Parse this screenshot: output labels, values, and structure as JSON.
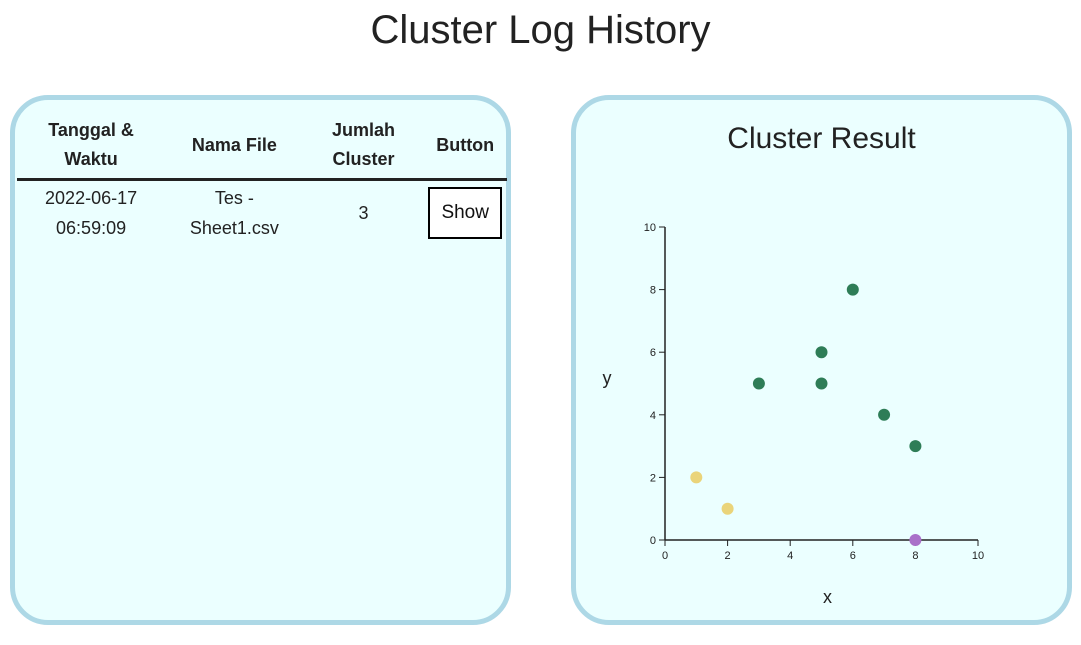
{
  "page": {
    "title": "Cluster Log History"
  },
  "log_table": {
    "headers": [
      {
        "line1": "Tanggal &",
        "line2": "Waktu"
      },
      {
        "line1": "Nama File",
        "line2": ""
      },
      {
        "line1": "Jumlah",
        "line2": "Cluster"
      },
      {
        "line1": "Button",
        "line2": ""
      }
    ],
    "rows": [
      {
        "date": "2022-06-17",
        "time": "06:59:09",
        "file_line1": "Tes -",
        "file_line2": "Sheet1.csv",
        "cluster_count": "3",
        "button_label": "Show"
      }
    ]
  },
  "chart_panel": {
    "title": "Cluster Result"
  },
  "chart_data": {
    "type": "scatter",
    "title": "Cluster Result",
    "xlabel": "x",
    "ylabel": "y",
    "xlim": [
      0,
      10
    ],
    "ylim": [
      0,
      10
    ],
    "xticks": [
      0,
      2,
      4,
      6,
      8,
      10
    ],
    "yticks": [
      0,
      2,
      4,
      6,
      8,
      10
    ],
    "grid": false,
    "series": [
      {
        "color": "#2e7d57",
        "points": [
          [
            3,
            5
          ],
          [
            5,
            5
          ],
          [
            5,
            6
          ],
          [
            6,
            8
          ],
          [
            7,
            4
          ],
          [
            8,
            3
          ]
        ]
      },
      {
        "color": "#ead47a",
        "points": [
          [
            1,
            2
          ],
          [
            2,
            1
          ]
        ]
      },
      {
        "color": "#a970c9",
        "points": [
          [
            8,
            0
          ]
        ]
      }
    ]
  }
}
